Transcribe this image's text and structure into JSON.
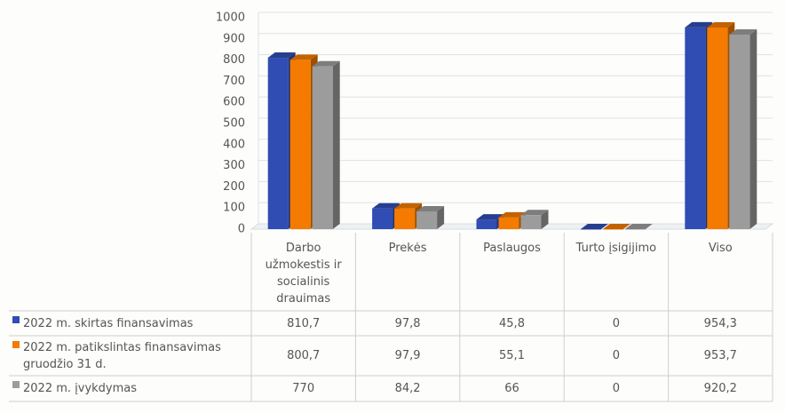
{
  "chart_data": {
    "type": "bar3d",
    "categories": [
      "Darbo užmokestis ir socialinis drauimas",
      "Prekės",
      "Paslaugos",
      "Turto įsigijimo",
      "Viso"
    ],
    "series": [
      {
        "name": "2022 m. skirtas finansavimas",
        "color": "#2f4db3",
        "values": [
          810.7,
          97.8,
          45.8,
          0,
          954.3
        ],
        "value_labels": [
          "810,7",
          "97,8",
          "45,8",
          "0",
          "954,3"
        ]
      },
      {
        "name": "2022 m. patikslintas finansavimas gruodžio 31 d.",
        "color": "#f47a00",
        "values": [
          800.7,
          97.9,
          55.1,
          0,
          953.7
        ],
        "value_labels": [
          "800,7",
          "97,9",
          "55,1",
          "0",
          "953,7"
        ]
      },
      {
        "name": "2022 m. įvykdymas",
        "color": "#9c9c9c",
        "values": [
          770,
          84.2,
          66,
          0,
          920.2
        ],
        "value_labels": [
          "770",
          "84,2",
          "66",
          "0",
          "920,2"
        ]
      }
    ],
    "ylim": [
      0,
      1000
    ],
    "yticks": [
      0,
      100,
      200,
      300,
      400,
      500,
      600,
      700,
      800,
      900,
      1000
    ],
    "grid": true
  }
}
